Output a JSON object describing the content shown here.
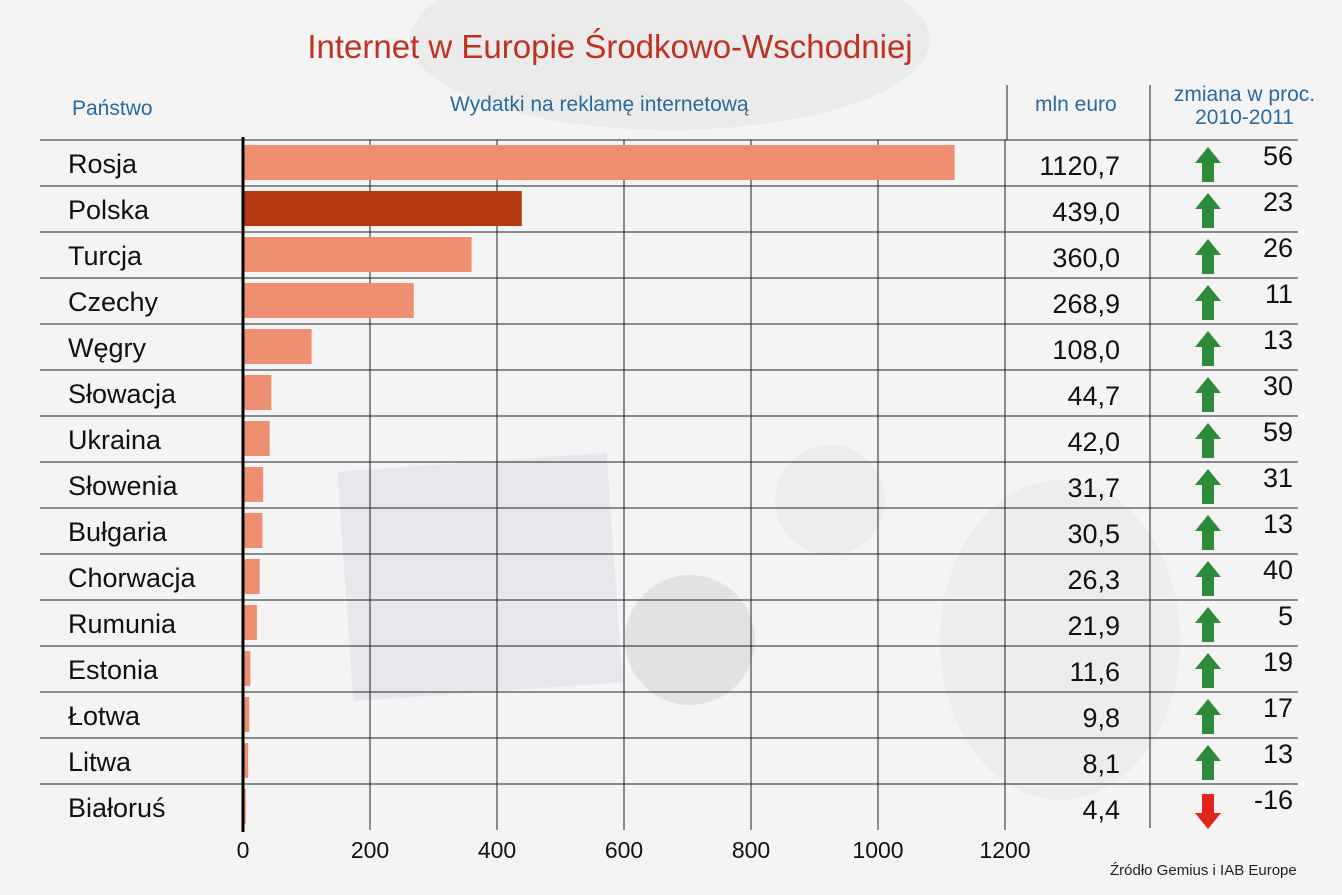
{
  "title": "Internet w Europie Środkowo-Wschodniej",
  "headers": {
    "country": "Państwo",
    "spending": "Wydatki na reklamę internetową",
    "unit": "mln euro",
    "change_line1": "zmiana w proc.",
    "change_line2": "2010-2011"
  },
  "source": "Źródło Gemius i IAB Europe",
  "colors": {
    "bar": "#ef8f72",
    "bar_highlight": "#b5390f",
    "arrow_up": "#2e8b3a",
    "arrow_down": "#e0261b",
    "title": "#c0311e",
    "header": "#2a6aa0"
  },
  "chart_data": {
    "type": "bar",
    "orientation": "horizontal",
    "categories": [
      "Rosja",
      "Polska",
      "Turcja",
      "Czechy",
      "Węgry",
      "Słowacja",
      "Ukraina",
      "Słowenia",
      "Bułgaria",
      "Chorwacja",
      "Rumunia",
      "Estonia",
      "Łotwa",
      "Litwa",
      "Białoruś"
    ],
    "values": [
      1120.7,
      439.0,
      360.0,
      268.9,
      108.0,
      44.7,
      42.0,
      31.7,
      30.5,
      26.3,
      21.9,
      11.6,
      9.8,
      8.1,
      4.4
    ],
    "value_labels": [
      "1120,7",
      "439,0",
      "360,0",
      "268,9",
      "108,0",
      "44,7",
      "42,0",
      "31,7",
      "30,5",
      "26,3",
      "21,9",
      "11,6",
      "9,8",
      "8,1",
      "4,4"
    ],
    "change_pct": [
      56,
      23,
      26,
      11,
      13,
      30,
      59,
      31,
      13,
      40,
      5,
      19,
      17,
      13,
      -16
    ],
    "change_labels": [
      "56",
      "23",
      "26",
      "11",
      "13",
      "30",
      "59",
      "31",
      "13",
      "40",
      "5",
      "19",
      "17",
      "13",
      "-16"
    ],
    "highlight": "Polska",
    "xlim": [
      0,
      1200
    ],
    "x_ticks": [
      0,
      200,
      400,
      600,
      800,
      1000,
      1200
    ],
    "x_tick_labels": [
      "0",
      "200",
      "400",
      "600",
      "800",
      "1000",
      "1200"
    ],
    "grid": true,
    "title": "Internet w Europie Środkowo-Wschodniej",
    "xlabel": "Wydatki na reklamę internetową",
    "unit": "mln euro"
  }
}
